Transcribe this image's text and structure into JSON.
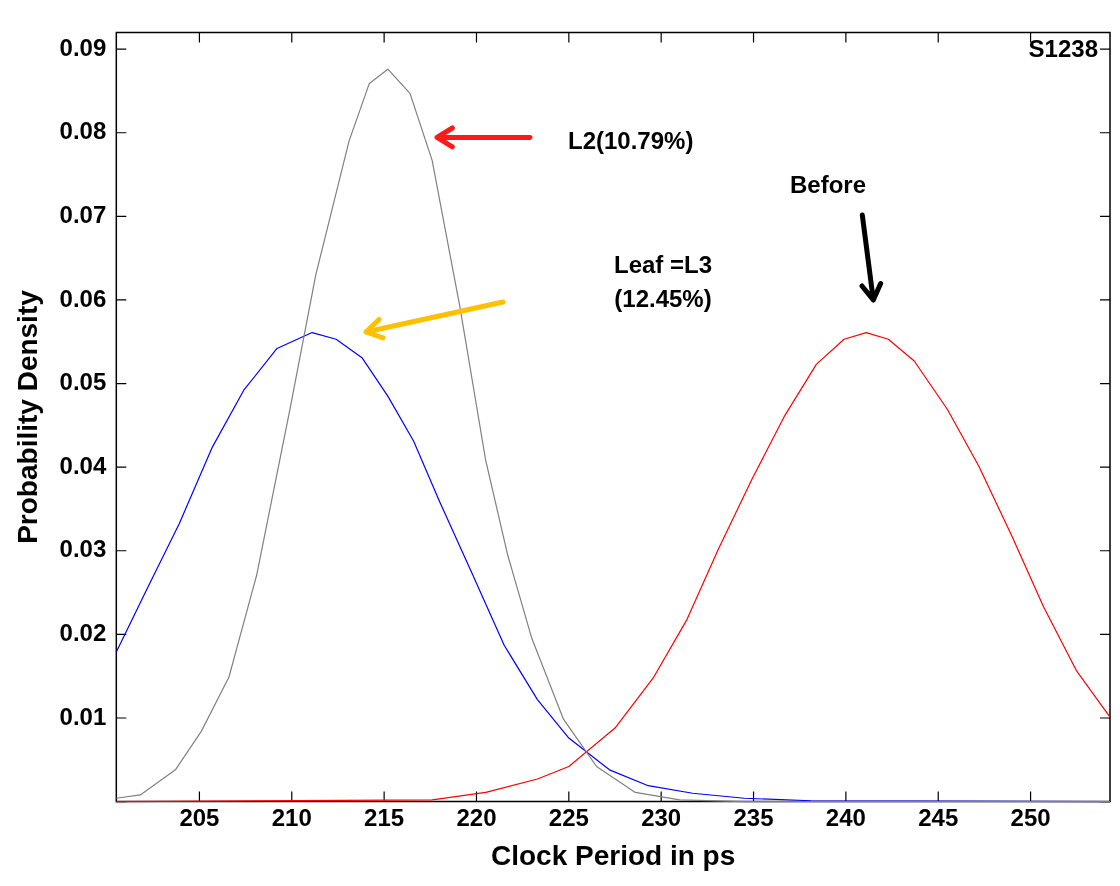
{
  "chart_data": {
    "type": "line",
    "xlabel": "Clock Period in ps",
    "ylabel": "Probability Density",
    "xlim": [
      200.5,
      254.3
    ],
    "ylim": [
      0,
      0.092
    ],
    "xticks": [
      205,
      210,
      215,
      220,
      225,
      230,
      235,
      240,
      245,
      250
    ],
    "yticks": [
      {
        "value": 0,
        "label": null
      },
      0.01,
      0.02,
      0.03,
      0.04,
      0.05,
      0.06,
      0.07,
      0.08,
      0.09
    ],
    "grid": false,
    "legend": false,
    "marker": "none",
    "line_style": "solid",
    "series": [
      {
        "color": "#808080",
        "x": [
          200.5,
          201.8,
          203.7,
          205.1,
          206.6,
          208.1,
          209.9,
          211.3,
          213.1,
          214.2,
          215.2,
          216.4,
          217.6,
          219.1,
          220.5,
          221.7,
          223.0,
          224.7,
          226.5,
          228.6,
          231.0,
          234.5,
          254.3
        ],
        "values": [
          0.0004,
          0.0008,
          0.0038,
          0.0084,
          0.0149,
          0.0271,
          0.0469,
          0.063,
          0.079,
          0.0859,
          0.0876,
          0.0847,
          0.0767,
          0.0592,
          0.0408,
          0.0294,
          0.0195,
          0.0099,
          0.0042,
          0.0011,
          0.0002,
          0,
          0
        ]
      },
      {
        "color": "#0000ff",
        "x": [
          200.5,
          202.2,
          203.9,
          205.7,
          207.4,
          209.2,
          211.1,
          212.4,
          213.8,
          215.2,
          216.6,
          218.0,
          219.8,
          221.5,
          223.3,
          225.0,
          227.2,
          229.3,
          231.7,
          234.5,
          238.1,
          254.3
        ],
        "values": [
          0.0179,
          0.0256,
          0.0332,
          0.0424,
          0.0492,
          0.0542,
          0.0561,
          0.0553,
          0.0531,
          0.0485,
          0.0431,
          0.0359,
          0.0271,
          0.0187,
          0.0122,
          0.0076,
          0.0038,
          0.0019,
          0.001,
          0.0004,
          0.0001,
          0
        ]
      },
      {
        "color": "#ff0000",
        "x": [
          200.5,
          217.6,
          220.5,
          223.3,
          225.0,
          227.5,
          229.6,
          231.4,
          233.1,
          234.9,
          236.7,
          238.4,
          239.9,
          241.1,
          242.3,
          243.7,
          245.5,
          247.2,
          249.0,
          250.7,
          252.5,
          254.3
        ],
        "values": [
          0,
          0.0002,
          0.0011,
          0.0027,
          0.0042,
          0.0088,
          0.0149,
          0.0218,
          0.0302,
          0.0385,
          0.0462,
          0.0523,
          0.0553,
          0.0561,
          0.0553,
          0.0527,
          0.0469,
          0.0401,
          0.0317,
          0.0233,
          0.0156,
          0.0101
        ]
      }
    ],
    "annotations": [
      "S1238",
      "L2(10.79%)",
      "Leaf =L3\n(12.45%)",
      "Before"
    ]
  }
}
